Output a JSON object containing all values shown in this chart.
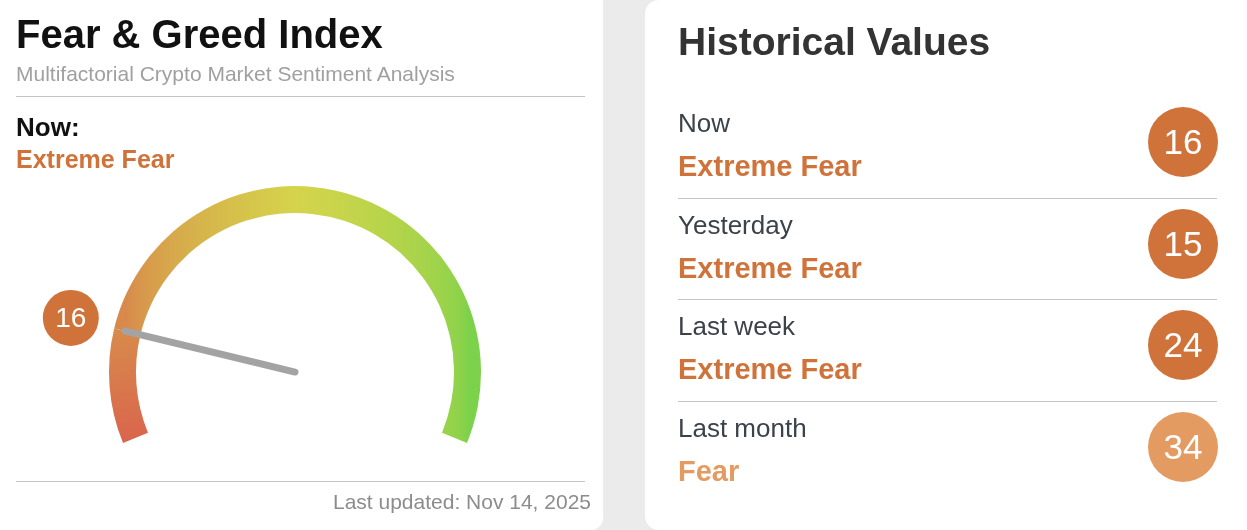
{
  "chart_data": [
    {
      "type": "donut",
      "title": "Fear & Greed Index",
      "subtitle": "Multifactorial Crypto Market Sentiment Analysis",
      "categories": [
        null,
        null
      ],
      "values": [
        16,
        84
      ],
      "colors": [
        "#d9664c",
        "#66d14a"
      ],
      "needle": null,
      "color": "#d0733a",
      "value_labels": [
        "16",
        null
      ],
      "annotations": [
        "Now:",
        "Extreme Fear",
        "Last updated: Nov 14, 2025"
      ]
    },
    {
      "type": "other",
      "title": "Historical Values",
      "categories": [
        "Now",
        "Yesterday",
        "Last week",
        "Last month"
      ],
      "values": [
        16,
        15,
        24,
        34
      ],
      "colors": [
        "#d0733a",
        "#d0733a",
        "#d0733a",
        "#e39b62"
      ],
      "data_labels": true,
      "annotations": [
        "Extreme Fear",
        "Extreme Fear",
        "Extreme Fear",
        "Fear"
      ]
    }
  ]
}
